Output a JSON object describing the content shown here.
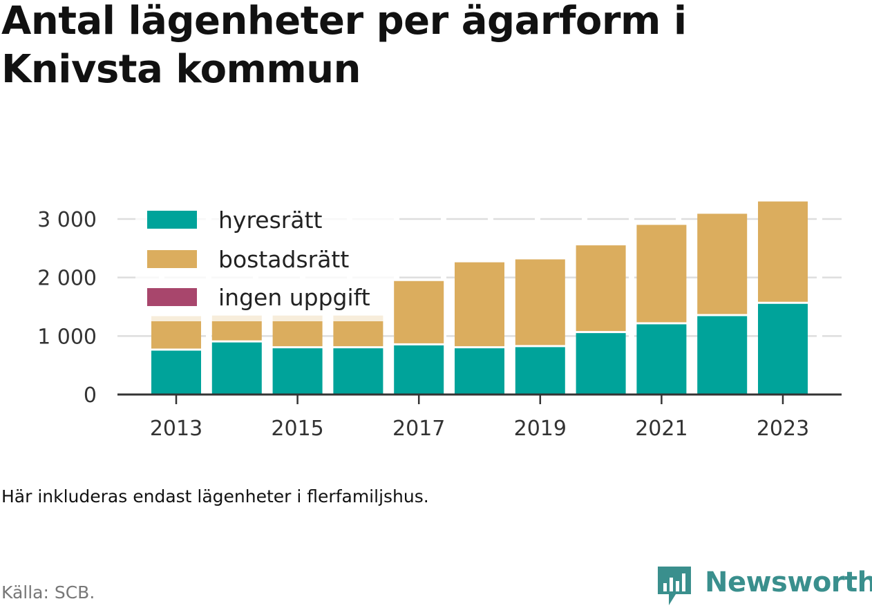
{
  "title": "Antal lägenheter per ägarform i Knivsta kommun",
  "note": "Här inkluderas endast lägenheter i flerfamiljshus.",
  "source": "Källa: SCB.",
  "brand": "Newsworthy",
  "colors": {
    "hyresratt": "#00a39a",
    "bostadsratt": "#dbad5e",
    "ingen_uppgift": "#a8466c",
    "brand": "#3a8f8d",
    "grid": "#dddddd",
    "axis": "#333333"
  },
  "chart_data": {
    "type": "bar",
    "stacked": true,
    "x": [
      2013,
      2014,
      2015,
      2016,
      2017,
      2018,
      2019,
      2020,
      2021,
      2022,
      2023
    ],
    "series": [
      {
        "name": "hyresrätt",
        "values": [
          750,
          890,
          790,
          790,
          840,
          790,
          810,
          1050,
          1200,
          1340,
          1550
        ]
      },
      {
        "name": "bostadsrätt",
        "values": [
          590,
          460,
          560,
          560,
          1100,
          1470,
          1500,
          1500,
          1700,
          1750,
          1750
        ]
      },
      {
        "name": "ingen uppgift",
        "values": [
          0,
          0,
          0,
          0,
          0,
          0,
          0,
          0,
          0,
          0,
          0
        ]
      }
    ],
    "x_tick_labels": [
      "2013",
      "2015",
      "2017",
      "2019",
      "2021",
      "2023"
    ],
    "y_tick_labels": [
      "0",
      "1 000",
      "2 000",
      "3 000"
    ],
    "y_ticks": [
      0,
      1000,
      2000,
      3000
    ],
    "ylim": [
      0,
      3300
    ],
    "grid": true,
    "legend_position": "top-left"
  }
}
